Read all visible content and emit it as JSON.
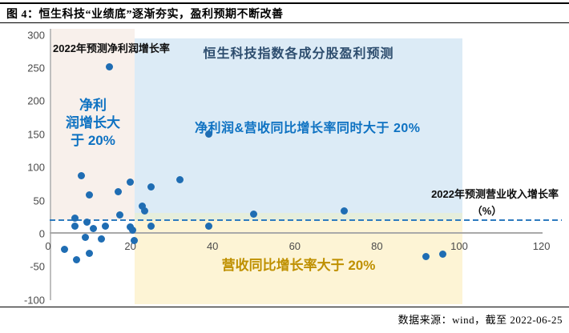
{
  "header": {
    "title": "图 4：恒生科技“业绩底”逐渐夯实，盈利预期不断改善"
  },
  "footer": {
    "source": "数据来源：wind，截至 2022-06-25"
  },
  "chart_data": {
    "type": "scatter",
    "title": "恒生科技指数各成分股盈利预测",
    "xlabel": "2022年预测营业收入增长率",
    "xlabel_unit": "（%）",
    "ylabel": "2022年预测净利润增长率",
    "xlim": [
      0,
      126
    ],
    "ylim": [
      -100,
      300
    ],
    "x_ticks": [
      0,
      20,
      40,
      60,
      80,
      100,
      120
    ],
    "y_ticks": [
      300,
      250,
      200,
      150,
      100,
      50,
      0,
      -50,
      -100
    ],
    "grid": false,
    "legend": "none",
    "threshold_line": {
      "y": 20,
      "style": "dashed",
      "color": "#2e7bbf"
    },
    "points": [
      [
        15,
        252
      ],
      [
        39,
        150
      ],
      [
        8,
        88
      ],
      [
        32,
        82
      ],
      [
        20,
        78
      ],
      [
        25,
        71
      ],
      [
        17,
        63
      ],
      [
        10,
        58
      ],
      [
        23,
        42
      ],
      [
        23.5,
        35
      ],
      [
        72,
        34
      ],
      [
        50,
        29
      ],
      [
        17.5,
        28
      ],
      [
        6.5,
        24
      ],
      [
        9.5,
        17
      ],
      [
        6.5,
        12
      ],
      [
        25,
        12
      ],
      [
        14,
        11
      ],
      [
        39,
        11
      ],
      [
        20,
        10
      ],
      [
        11,
        8
      ],
      [
        20.5,
        5
      ],
      [
        9,
        -6
      ],
      [
        13,
        -8
      ],
      [
        21,
        -10
      ],
      [
        4,
        -24
      ],
      [
        10,
        -30
      ],
      [
        96,
        -31
      ],
      [
        92,
        -35
      ],
      [
        7,
        -39
      ]
    ],
    "annotations": {
      "net_profit_region_label": "净利润增长大于 20%",
      "net_profit_region_label_lines": [
        "净利",
        "润增长大",
        "于 20%"
      ],
      "both_condition_label": "净利润&营收同比增长率同时大于 20%",
      "revenue_region_label": "营收同比增长率大于 20%"
    },
    "regions": [
      {
        "name": "net-profit-gt-20",
        "x": [
          0,
          21
        ],
        "y": [
          20,
          300
        ],
        "fill": "#f8f0eb"
      },
      {
        "name": "both-gt-20",
        "x": [
          21,
          100
        ],
        "y": [
          20,
          300
        ],
        "fill": "#dcebf6"
      },
      {
        "name": "revenue-gt-20",
        "x": [
          21,
          100
        ],
        "y": [
          -100,
          30
        ],
        "fill": "#fdf4d5"
      }
    ],
    "colors": {
      "point": "#1f6db3",
      "dashed_line": "#2e7bbf",
      "net_profit_region_bg": "#f8f0eb",
      "both_region_bg": "#dcebf6",
      "revenue_region_bg": "#fdf4d5",
      "overlap_band": "#e6eedc",
      "blue_text": "#0e72c2",
      "navy_text": "#2d4d6e",
      "gold_text": "#bf9000",
      "axis_line": "#bfbfbf",
      "tick_text": "#4a4a4a"
    }
  }
}
